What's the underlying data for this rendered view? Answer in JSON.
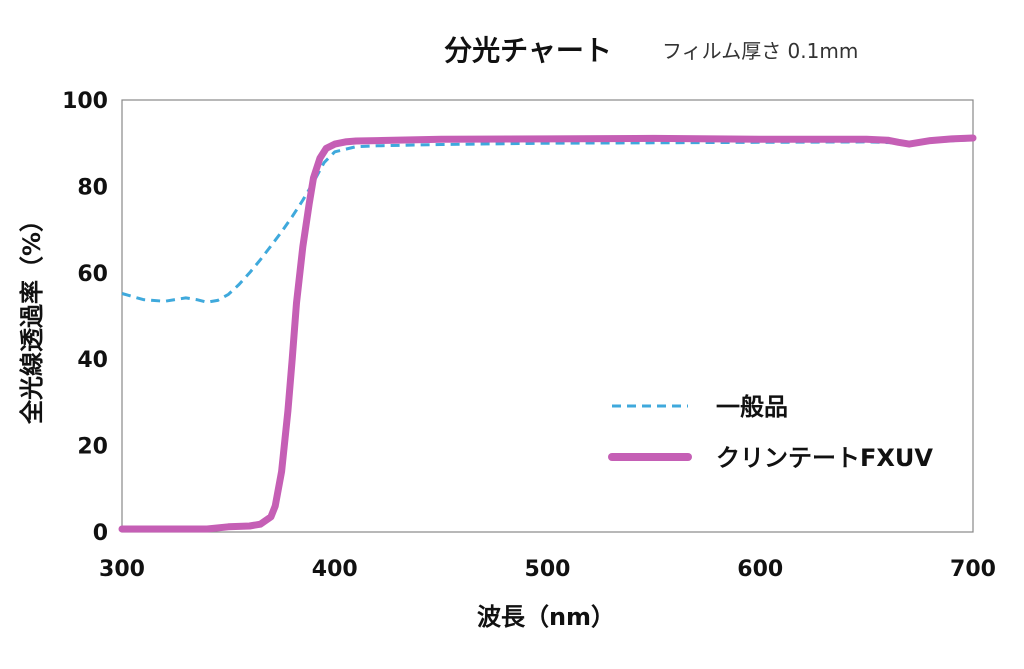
{
  "chart_data": {
    "type": "line",
    "title": "分光チャート",
    "subtitle": "フィルム厚さ 0.1mm",
    "xlabel": "波長（nm）",
    "ylabel": "全光線透過率（%）",
    "xlim": [
      300,
      700
    ],
    "ylim": [
      0,
      100
    ],
    "xticks": [
      300,
      400,
      500,
      600,
      700
    ],
    "yticks": [
      0,
      20,
      40,
      60,
      80,
      100
    ],
    "grid": false,
    "legend_position": "lower-right",
    "series": [
      {
        "name": "一般品",
        "color": "#3fa9dc",
        "style": "dashed",
        "x": [
          300,
          310,
          320,
          330,
          335,
          340,
          345,
          350,
          355,
          360,
          365,
          370,
          375,
          380,
          385,
          390,
          395,
          400,
          410,
          420,
          450,
          500,
          550,
          600,
          650,
          670,
          680,
          700
        ],
        "y": [
          55.2,
          53.8,
          53.4,
          54.2,
          53.8,
          53.2,
          53.6,
          55.0,
          57.3,
          60.0,
          63.0,
          66.2,
          69.5,
          73.0,
          76.8,
          81.0,
          85.5,
          88.0,
          89.2,
          89.4,
          89.7,
          90.0,
          90.1,
          90.2,
          90.3,
          90.0,
          90.3,
          90.8
        ]
      },
      {
        "name": "クリンテートFXUV",
        "color": "#c55fb5",
        "style": "solid",
        "x": [
          300,
          320,
          340,
          350,
          360,
          365,
          370,
          372,
          375,
          378,
          380,
          382,
          385,
          388,
          390,
          393,
          396,
          400,
          405,
          410,
          420,
          450,
          500,
          550,
          600,
          650,
          660,
          665,
          670,
          675,
          680,
          690,
          700
        ],
        "y": [
          0.7,
          0.7,
          0.7,
          1.2,
          1.4,
          1.8,
          3.5,
          6.0,
          14.0,
          28.0,
          40.0,
          53.0,
          66.0,
          76.0,
          82.0,
          86.5,
          88.8,
          89.8,
          90.3,
          90.5,
          90.6,
          90.9,
          91.0,
          91.1,
          90.9,
          90.9,
          90.7,
          90.2,
          89.8,
          90.2,
          90.6,
          91.0,
          91.2
        ]
      }
    ]
  }
}
